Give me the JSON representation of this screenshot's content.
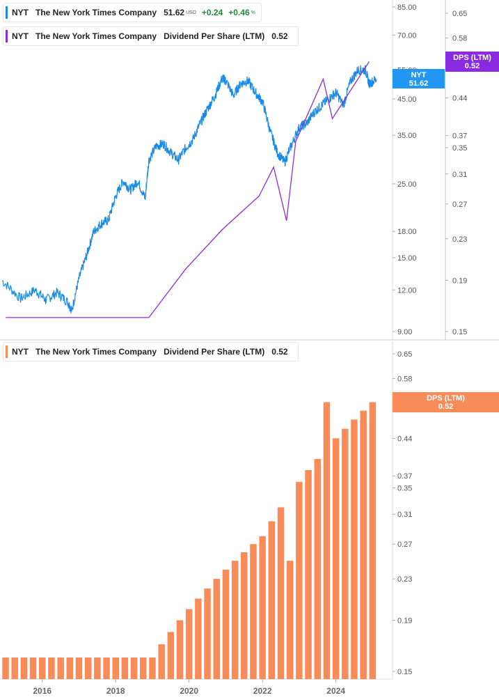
{
  "legends": {
    "top1": {
      "ticker": "NYT",
      "name": "The New York Times Company",
      "price": "51.62",
      "currency": "USD",
      "change": "+0.24",
      "change_pct": "+0.46",
      "pct_sign": "%"
    },
    "top2": {
      "ticker": "NYT",
      "name": "The New York Times Company",
      "metric": "Dividend Per Share (LTM)",
      "value": "0.52"
    },
    "bottom": {
      "ticker": "NYT",
      "name": "The New York Times Company",
      "metric": "Dividend Per Share (LTM)",
      "value": "0.52"
    }
  },
  "tags": {
    "price": {
      "line1": "NYT",
      "line2": "51.62"
    },
    "dps_top": {
      "line1": "DPS (LTM)",
      "line2": "0.52"
    },
    "dps_bottom": {
      "line1": "DPS (LTM)",
      "line2": "0.52"
    }
  },
  "colors": {
    "price_line": "#1a8ae8",
    "dps_line": "#8a2be2",
    "bars": "#f98b58",
    "price_tag": "#2196f3",
    "dps_tag": "#8a2be2",
    "dps_bottom_tag": "#f98b58",
    "positive": "#1f8a3a"
  },
  "chart_data": [
    {
      "type": "line",
      "scale": "log",
      "series": [
        {
          "name": "NYT",
          "x": [
            2015.0,
            2015.5,
            2015.9,
            2016.2,
            2016.5,
            2016.8,
            2016.9,
            2017.1,
            2017.3,
            2017.5,
            2017.7,
            2017.9,
            2018.1,
            2018.3,
            2018.5,
            2018.7,
            2018.9,
            2019.0,
            2019.2,
            2019.4,
            2019.6,
            2019.8,
            2020.0,
            2020.2,
            2020.4,
            2020.6,
            2020.8,
            2021.0,
            2021.1,
            2021.3,
            2021.5,
            2021.7,
            2021.9,
            2022.1,
            2022.3,
            2022.5,
            2022.7,
            2022.9,
            2023.1,
            2023.3,
            2023.5,
            2023.7,
            2023.9,
            2024.1,
            2024.3,
            2024.5,
            2024.7,
            2024.9,
            2025.0,
            2025.2
          ],
          "values": [
            12.8,
            11.3,
            12.0,
            11.2,
            11.8,
            11.0,
            10.4,
            13.0,
            15.2,
            18.0,
            19.0,
            19.5,
            23.0,
            25.5,
            24.0,
            25.5,
            22.5,
            29.5,
            32.5,
            33.0,
            31.0,
            29.5,
            32.0,
            34.0,
            38.0,
            42.0,
            46.0,
            52.0,
            51.0,
            46.0,
            50.0,
            51.0,
            47.0,
            44.0,
            36.0,
            31.0,
            29.0,
            33.0,
            37.0,
            38.0,
            41.0,
            43.0,
            45.0,
            47.0,
            43.0,
            51.0,
            55.0,
            55.0,
            50.0,
            51.62
          ]
        }
      ],
      "yticks": [
        "85.00",
        "70.00",
        "55.00",
        "45.00",
        "35.00",
        "25.00",
        "18.00",
        "15.00",
        "12.00",
        "9.00"
      ]
    },
    {
      "type": "line",
      "scale": "log",
      "series": [
        {
          "name": "Dividend Per Share (LTM)",
          "x": [
            2015.1,
            2019.0,
            2020.0,
            2021.0,
            2022.0,
            2022.4,
            2022.75,
            2023.0,
            2023.75,
            2024.0,
            2025.0
          ],
          "values": [
            0.16,
            0.16,
            0.2,
            0.24,
            0.28,
            0.32,
            0.25,
            0.36,
            0.48,
            0.4,
            0.52
          ]
        }
      ],
      "yticks": [
        "0.65",
        "0.58",
        "0.44",
        "0.37",
        "0.35",
        "0.31",
        "0.27",
        "0.23",
        "0.19",
        "0.15"
      ]
    },
    {
      "type": "bar",
      "scale": "log",
      "series": [
        {
          "name": "Dividend Per Share (LTM)",
          "x": [
            2015.0,
            2015.25,
            2015.5,
            2015.75,
            2016.0,
            2016.25,
            2016.5,
            2016.75,
            2017.0,
            2017.25,
            2017.5,
            2017.75,
            2018.0,
            2018.25,
            2018.5,
            2018.75,
            2019.0,
            2019.25,
            2019.5,
            2019.75,
            2020.0,
            2020.25,
            2020.5,
            2020.75,
            2021.0,
            2021.25,
            2021.5,
            2021.75,
            2022.0,
            2022.25,
            2022.5,
            2022.75,
            2023.0,
            2023.25,
            2023.5,
            2023.75,
            2024.0,
            2024.25,
            2024.5,
            2024.75,
            2025.0
          ],
          "values": [
            0.16,
            0.16,
            0.16,
            0.16,
            0.16,
            0.16,
            0.16,
            0.16,
            0.16,
            0.16,
            0.16,
            0.16,
            0.16,
            0.16,
            0.16,
            0.16,
            0.16,
            0.17,
            0.18,
            0.19,
            0.2,
            0.21,
            0.22,
            0.23,
            0.24,
            0.25,
            0.26,
            0.27,
            0.28,
            0.3,
            0.32,
            0.25,
            0.36,
            0.38,
            0.4,
            0.52,
            0.44,
            0.46,
            0.48,
            0.5,
            0.52
          ]
        }
      ],
      "xticks": [
        "2016",
        "2018",
        "2020",
        "2022",
        "2024"
      ],
      "yticks": [
        "0.65",
        "0.58",
        "0.51",
        "0.44",
        "0.37",
        "0.35",
        "0.31",
        "0.27",
        "0.23",
        "0.19",
        "0.15"
      ]
    }
  ]
}
